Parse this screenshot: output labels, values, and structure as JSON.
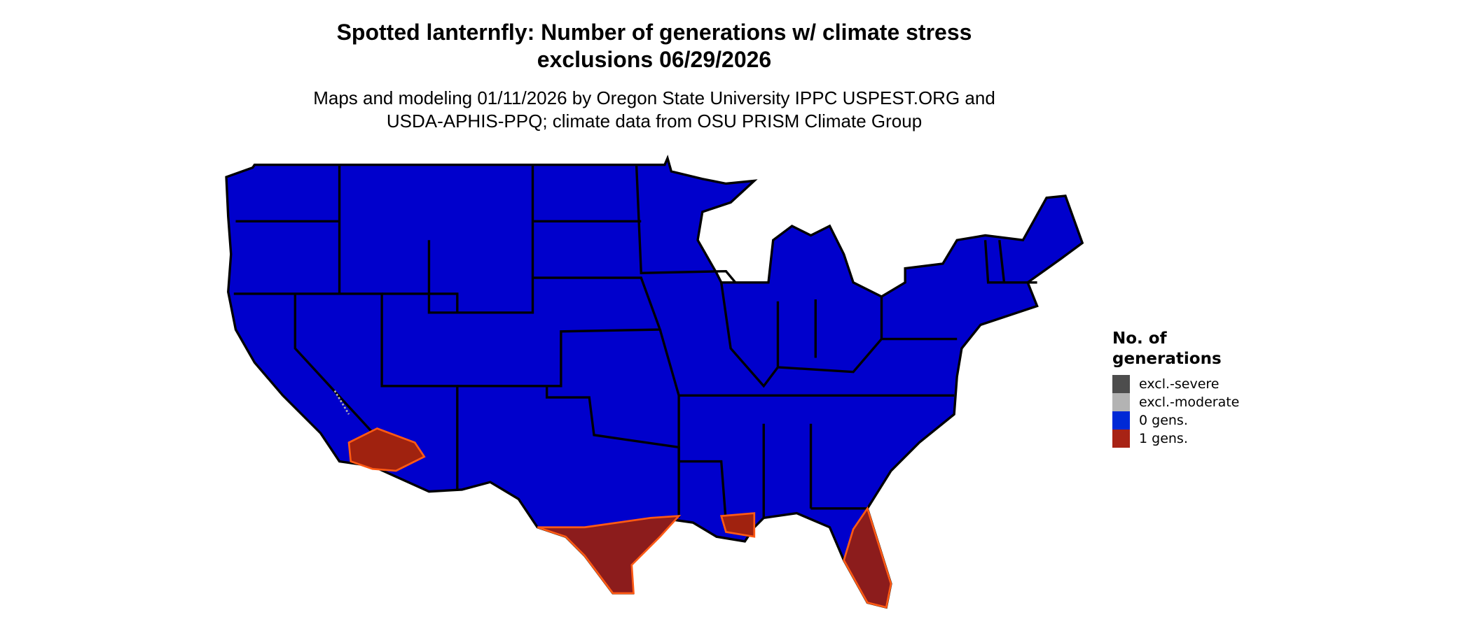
{
  "title": {
    "line1": "Spotted lanternfly: Number of generations w/ climate stress",
    "line2": "exclusions 06/29/2026"
  },
  "subtitle": {
    "line1": "Maps and modeling 01/11/2026 by Oregon State University IPPC USPEST.ORG and",
    "line2": "USDA-APHIS-PPQ; climate data from OSU PRISM Climate Group"
  },
  "map": {
    "region": "Contiguous United States",
    "base_color": "#0000cc",
    "border_color": "#000000"
  },
  "legend": {
    "title_line1": "No. of",
    "title_line2": "generations",
    "items": [
      {
        "label": "excl.-severe",
        "color": "#4d4d4d"
      },
      {
        "label": "excl.-moderate",
        "color": "#b3b3b3"
      },
      {
        "label": "0 gens.",
        "color": "#0029d6"
      },
      {
        "label": "1 gens.",
        "color": "#a82315"
      }
    ]
  }
}
